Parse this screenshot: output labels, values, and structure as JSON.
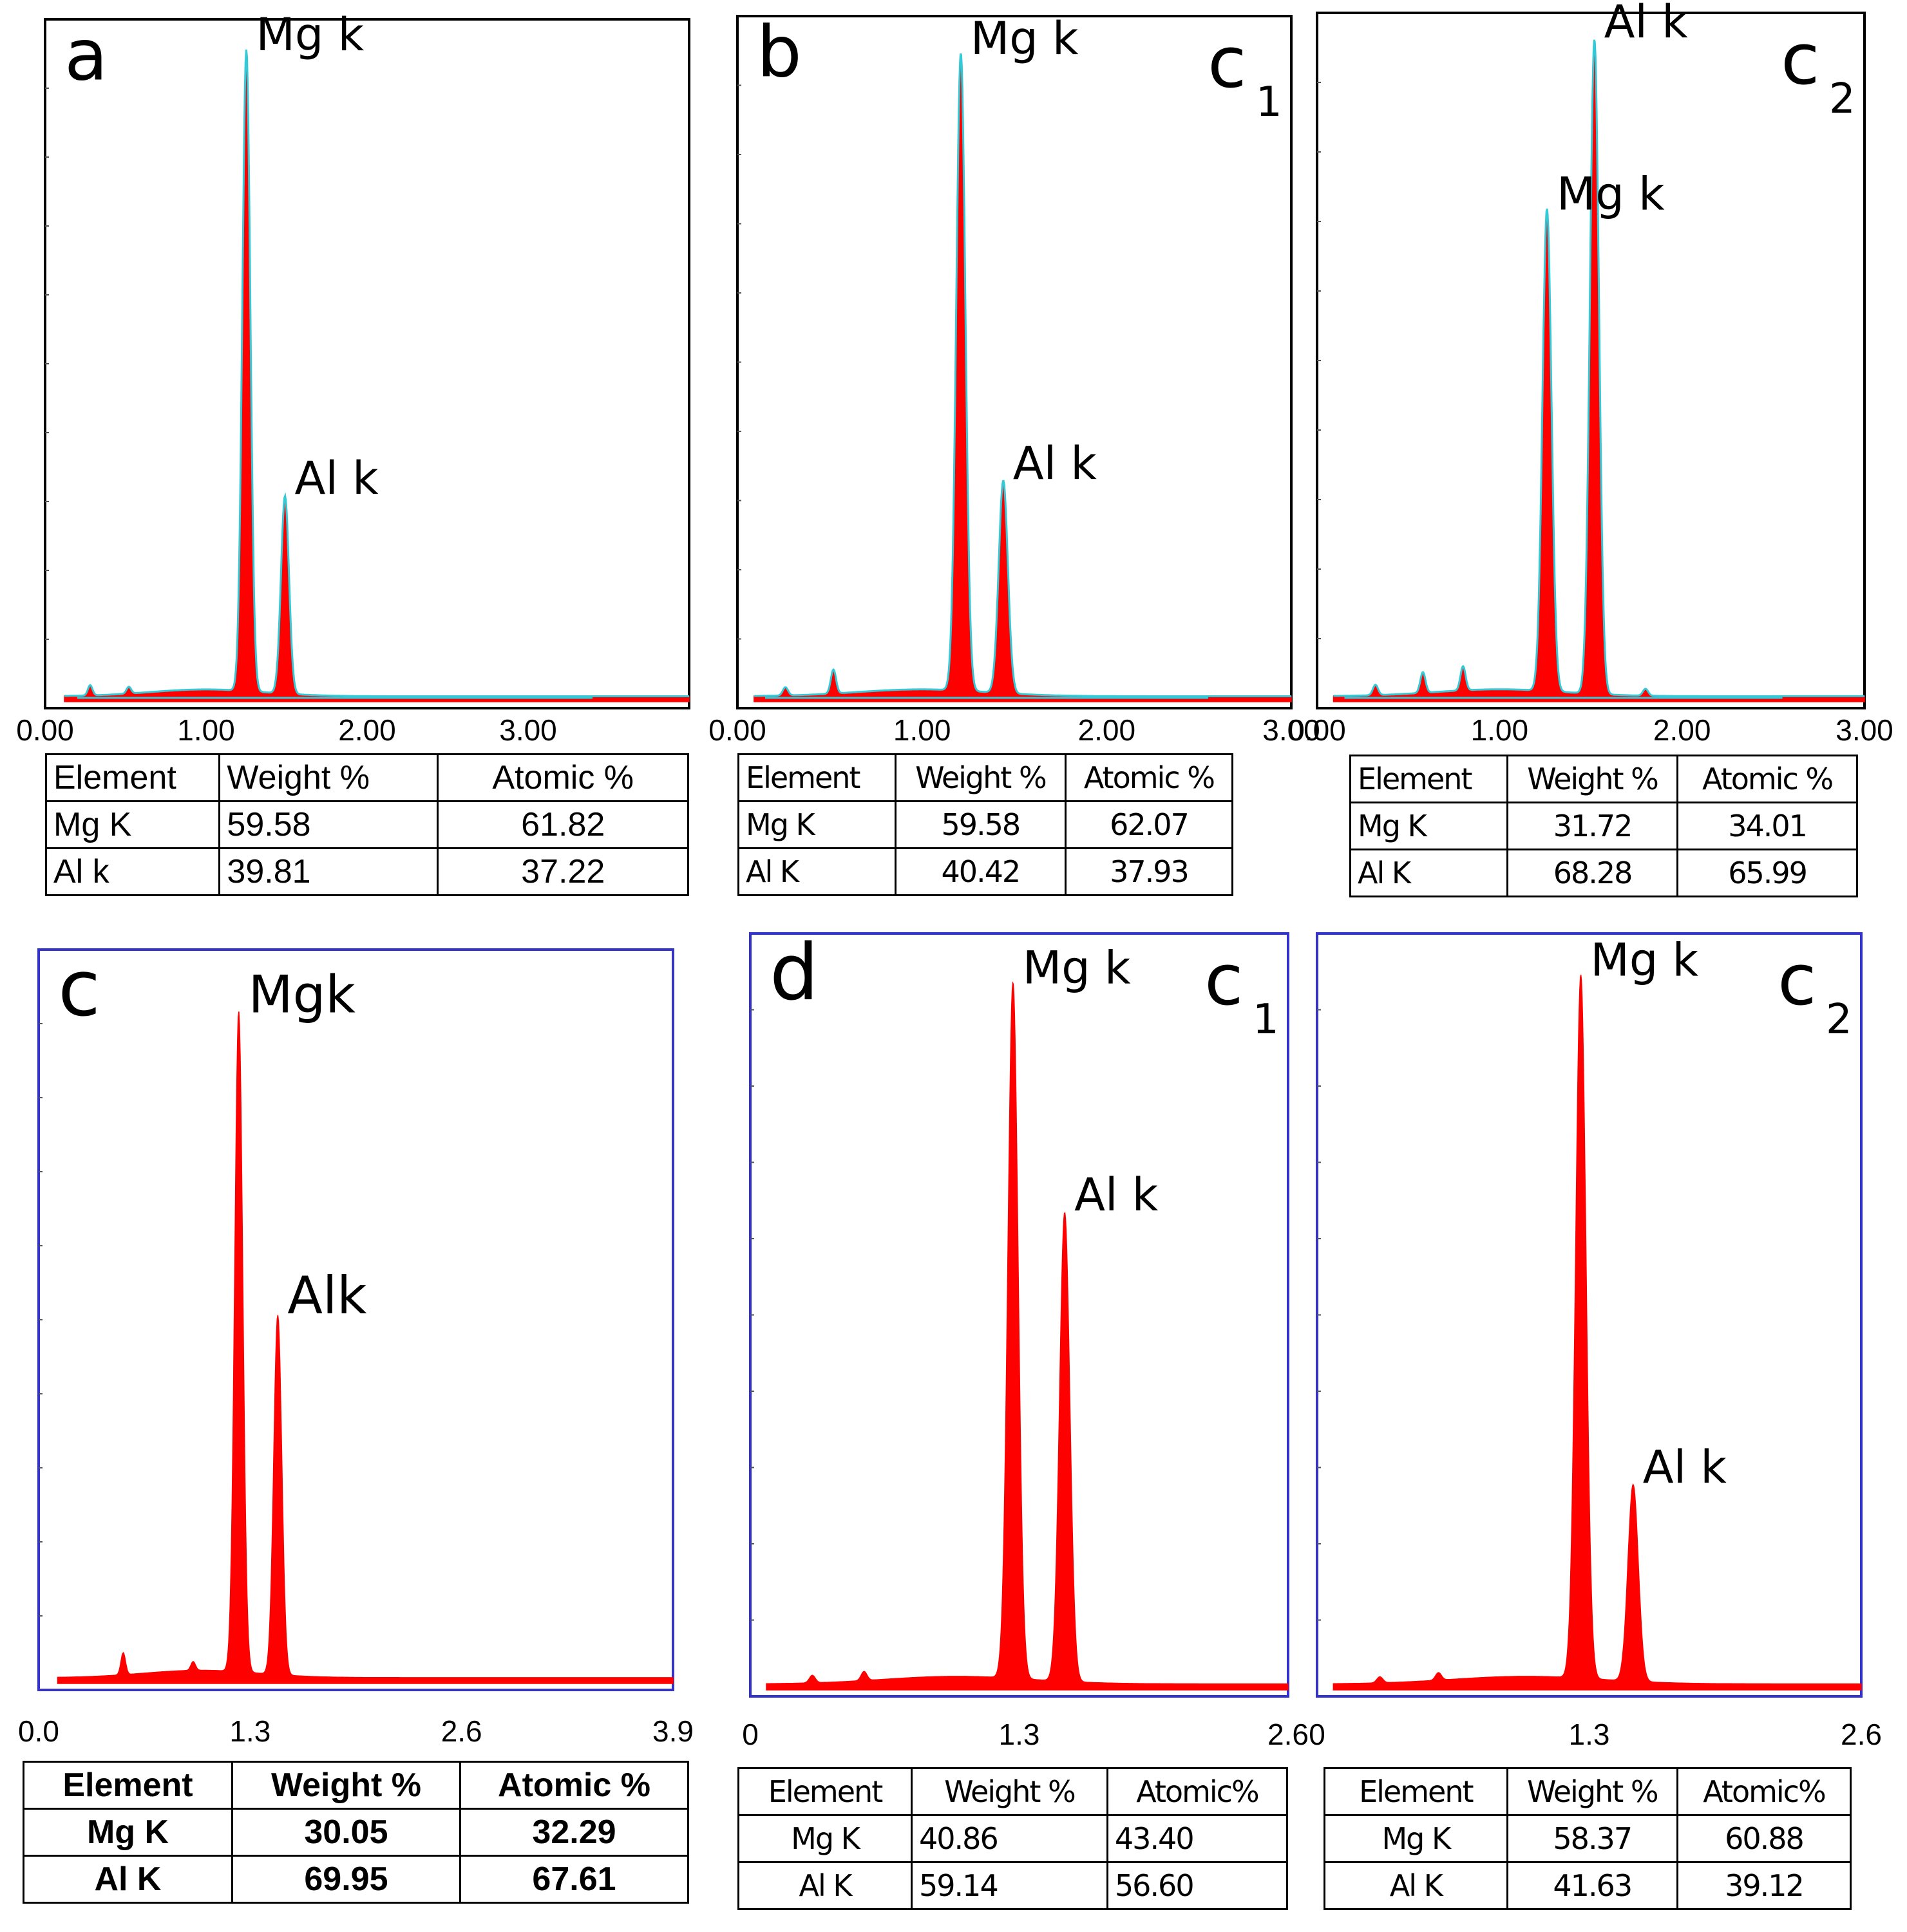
{
  "chart_data": [
    {
      "type": "line",
      "panel_label": "a",
      "title": "",
      "x_ticks": [
        "0.00",
        "1.00",
        "2.00",
        "3.00"
      ],
      "xlim": [
        0,
        4.0
      ],
      "peaks": [
        {
          "name": "Mg k",
          "x": 1.25,
          "rel_height": 0.94
        },
        {
          "name": "Al k",
          "x": 1.49,
          "rel_height": 0.29
        }
      ],
      "minor_peaks": [
        {
          "x": 0.28,
          "rel_height": 0.015
        },
        {
          "x": 0.52,
          "rel_height": 0.01
        }
      ],
      "fit_line": true,
      "table": {
        "headers": [
          "Element",
          "Weight %",
          "Atomic %"
        ],
        "rows": [
          [
            "Mg K",
            "59.58",
            "61.82"
          ],
          [
            "Al k",
            "39.81",
            "37.22"
          ]
        ]
      }
    },
    {
      "type": "line",
      "panel_label": "b",
      "corner_label": "c",
      "corner_sub": "1",
      "x_ticks": [
        "0.00",
        "1.00",
        "2.00",
        "3.00"
      ],
      "xlim": [
        0,
        3.0
      ],
      "peaks": [
        {
          "name": "Mg k",
          "x": 1.21,
          "rel_height": 0.93
        },
        {
          "name": "Al k",
          "x": 1.44,
          "rel_height": 0.31
        }
      ],
      "minor_peaks": [
        {
          "x": 0.26,
          "rel_height": 0.012
        },
        {
          "x": 0.52,
          "rel_height": 0.035
        }
      ],
      "fit_line": true,
      "table": {
        "headers": [
          "Element",
          "Weight %",
          "Atomic %"
        ],
        "rows": [
          [
            "Mg K",
            "59.58",
            "62.07"
          ],
          [
            "Al K",
            "40.42",
            "37.93"
          ]
        ]
      }
    },
    {
      "type": "line",
      "panel_label": "",
      "corner_label": "c",
      "corner_sub": "2",
      "x_ticks": [
        "0.00",
        "1.00",
        "2.00",
        "3.00"
      ],
      "xlim": [
        0,
        3.0
      ],
      "peaks": [
        {
          "name": "Mg k",
          "x": 1.26,
          "rel_height": 0.7
        },
        {
          "name": "Al k",
          "x": 1.52,
          "rel_height": 0.95
        }
      ],
      "minor_peaks": [
        {
          "x": 0.32,
          "rel_height": 0.015
        },
        {
          "x": 0.58,
          "rel_height": 0.03
        },
        {
          "x": 0.8,
          "rel_height": 0.035
        },
        {
          "x": 1.8,
          "rel_height": 0.01
        }
      ],
      "fit_line": true,
      "table": {
        "headers": [
          "Element",
          "Weight %",
          "Atomic %"
        ],
        "rows": [
          [
            "Mg K",
            "31.72",
            "34.01"
          ],
          [
            "Al K",
            "68.28",
            "65.99"
          ]
        ]
      }
    },
    {
      "type": "area",
      "panel_label": "c",
      "x_ticks": [
        "0.0",
        "1.3",
        "2.6",
        "3.9"
      ],
      "xlim": [
        0,
        3.9
      ],
      "peaks": [
        {
          "name": "Mgk",
          "x": 1.23,
          "rel_height": 0.9
        },
        {
          "name": "Alk",
          "x": 1.47,
          "rel_height": 0.49
        }
      ],
      "minor_peaks": [
        {
          "x": 0.52,
          "rel_height": 0.03
        },
        {
          "x": 0.95,
          "rel_height": 0.012
        }
      ],
      "fit_line": false,
      "table": {
        "headers": [
          "Element",
          "Weight %",
          "Atomic %"
        ],
        "rows": [
          [
            "Mg K",
            "30.05",
            "32.29"
          ],
          [
            "Al K",
            "69.95",
            "67.61"
          ]
        ]
      }
    },
    {
      "type": "area",
      "panel_label": "d",
      "corner_label": "c",
      "corner_sub": "1",
      "x_ticks": [
        "0",
        "1.3",
        "2.6"
      ],
      "xlim": [
        0,
        2.6
      ],
      "peaks": [
        {
          "name": "Mg k",
          "x": 1.27,
          "rel_height": 0.92
        },
        {
          "name": "Al k",
          "x": 1.52,
          "rel_height": 0.62
        }
      ],
      "minor_peaks": [
        {
          "x": 0.3,
          "rel_height": 0.01
        },
        {
          "x": 0.55,
          "rel_height": 0.012
        }
      ],
      "fit_line": false,
      "table": {
        "headers": [
          "Element",
          "Weight %",
          "Atomic%"
        ],
        "rows": [
          [
            "Mg K",
            "40.86",
            "43.40"
          ],
          [
            "Al K",
            "59.14",
            "56.60"
          ]
        ]
      }
    },
    {
      "type": "area",
      "panel_label": "",
      "corner_label": "c",
      "corner_sub": "2",
      "x_ticks": [
        "0",
        "1.3",
        "2.6"
      ],
      "xlim": [
        0,
        2.6
      ],
      "peaks": [
        {
          "name": "Mg k",
          "x": 1.26,
          "rel_height": 0.93
        },
        {
          "name": "Al k",
          "x": 1.51,
          "rel_height": 0.26
        }
      ],
      "minor_peaks": [
        {
          "x": 0.3,
          "rel_height": 0.008
        },
        {
          "x": 0.58,
          "rel_height": 0.01
        }
      ],
      "fit_line": false,
      "table": {
        "headers": [
          "Element",
          "Weight %",
          "Atomic%"
        ],
        "rows": [
          [
            "Mg K",
            "58.37",
            "60.88"
          ],
          [
            "Al K",
            "41.63",
            "39.12"
          ]
        ]
      }
    }
  ],
  "colors": {
    "peak_fill": "#ff0000",
    "fit_line": "#33c9d6",
    "frame_top": "#000000",
    "frame_bottom": "#3333cc"
  }
}
